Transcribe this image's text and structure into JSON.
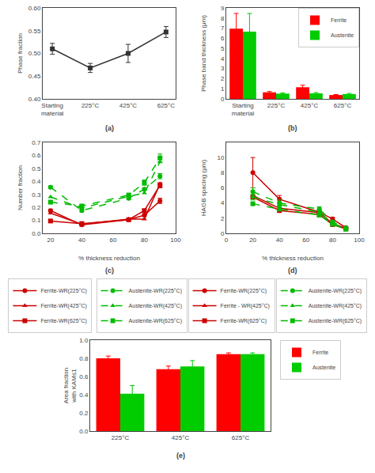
{
  "chart_data": [
    {
      "type": "line",
      "categories": [
        "Starting\nmaterial",
        "225°C",
        "425°C",
        "625°C"
      ],
      "values": [
        0.51,
        0.468,
        0.5,
        0.547
      ],
      "errors": [
        0.012,
        0.01,
        0.02,
        0.012
      ],
      "color": "#333333",
      "marker": "square",
      "ylim": [
        0.4,
        0.6
      ],
      "yticks": [
        {
          "value": 0.4,
          "label": "0.40"
        },
        {
          "value": 0.45,
          "label": "0.45"
        },
        {
          "value": 0.5,
          "label": "0.50"
        },
        {
          "value": 0.55,
          "label": "0.55"
        },
        {
          "value": 0.6,
          "label": "0.60"
        }
      ],
      "ylabel": "Phase fraction",
      "annotations": [
        "(a)"
      ],
      "grid": false
    },
    {
      "type": "bar",
      "categories": [
        "Starting\nmaterial",
        "225°C",
        "425°C",
        "625°C"
      ],
      "series": [
        {
          "name": "Ferrite",
          "color": "#ff0000",
          "values": [
            6.95,
            0.65,
            1.15,
            0.38
          ],
          "errors": [
            1.5,
            0.08,
            0.2,
            0.05
          ]
        },
        {
          "name": "Austenite",
          "color": "#00cc00",
          "values": [
            6.65,
            0.52,
            0.55,
            0.48
          ],
          "errors": [
            1.8,
            0.07,
            0.08,
            0.06
          ]
        }
      ],
      "ylim": [
        0,
        9
      ],
      "yticks": [
        0,
        1,
        2,
        3,
        4,
        5,
        6,
        7,
        8,
        9
      ],
      "ylabel": "Phase band thickness (μm)",
      "annotations": [
        "(b)"
      ],
      "legend": "upper right",
      "grid": false
    },
    {
      "type": "line",
      "x": [
        20,
        40,
        70,
        80,
        90
      ],
      "series": [
        {
          "name": "Ferrite-WR(225°C)",
          "color": "#cc0000",
          "marker": "circle",
          "line_style": "solid",
          "values": [
            0.175,
            0.065,
            0.105,
            0.14,
            0.25
          ],
          "errors": [
            0.01,
            0.01,
            0.01,
            0.01,
            0.02
          ]
        },
        {
          "name": "Ferrite-WR(425°C)",
          "color": "#cc0000",
          "marker": "triangle",
          "line_style": "solid",
          "values": [
            0.155,
            0.07,
            0.11,
            0.11,
            0.38
          ]
        },
        {
          "name": "Ferrite-WR(625°C)",
          "color": "#cc0000",
          "marker": "square",
          "line_style": "solid",
          "values": [
            0.095,
            0.075,
            0.105,
            0.175,
            0.37
          ],
          "errors": [
            0.01,
            0.01,
            0.01,
            0.01,
            0.02
          ]
        },
        {
          "name": "Austenite-WR(225°C)",
          "color": "#00bb00",
          "marker": "circle",
          "line_style": "dashed",
          "values": [
            0.355,
            0.175,
            0.27,
            0.34,
            0.44
          ],
          "errors": [
            0.01,
            0.01,
            0.01,
            0.01,
            0.02
          ]
        },
        {
          "name": "Austenite-WR(425°C)",
          "color": "#00bb00",
          "marker": "triangle",
          "line_style": "dashed",
          "values": [
            0.28,
            0.195,
            0.285,
            0.31,
            0.55
          ]
        },
        {
          "name": "Austenite-WR(625°C)",
          "color": "#00bb00",
          "marker": "square",
          "line_style": "dashed",
          "values": [
            0.24,
            0.21,
            0.295,
            0.39,
            0.58
          ],
          "errors": [
            0.01,
            0.01,
            0.01,
            0.02,
            0.03
          ]
        }
      ],
      "xlim": [
        15,
        100
      ],
      "xticks": [
        20,
        40,
        60,
        80,
        100
      ],
      "ylim": [
        0,
        0.7
      ],
      "yticks": [
        {
          "value": 0.0,
          "label": "0.0"
        },
        0.1,
        0.2,
        0.3,
        0.4,
        0.5,
        0.6,
        0.7
      ],
      "xlabel": "% thickness reduction",
      "ylabel": "Number fraction",
      "annotations": [
        "(c)"
      ],
      "legend": "bottom",
      "grid": false
    },
    {
      "type": "line",
      "x": [
        20,
        40,
        70,
        80,
        90
      ],
      "series": [
        {
          "name": "Ferrite-WR(225°C)",
          "color": "#cc0000",
          "marker": "circle",
          "line_style": "solid",
          "values": [
            8.0,
            4.5,
            2.8,
            1.9,
            0.75
          ],
          "errors": [
            2.0,
            0.5,
            0.3,
            0.2,
            0.08
          ]
        },
        {
          "name": "Ferrite - WR(425°C)",
          "color": "#cc0000",
          "marker": "triangle",
          "line_style": "solid",
          "values": [
            5.0,
            3.3,
            2.75,
            1.3,
            0.65
          ]
        },
        {
          "name": "Ferrite-WR(625°C)",
          "color": "#cc0000",
          "marker": "square",
          "line_style": "solid",
          "values": [
            4.8,
            3.0,
            2.5,
            1.15,
            0.6
          ]
        },
        {
          "name": "Austenite-WR(225°C)",
          "color": "#00bb00",
          "marker": "circle",
          "line_style": "dashed",
          "values": [
            5.5,
            4.0,
            3.2,
            1.5,
            0.7
          ],
          "errors": [
            0.5,
            0.4,
            0.3,
            0.15,
            0.06
          ]
        },
        {
          "name": "Austenite-WR(425°C)",
          "color": "#00bb00",
          "marker": "triangle",
          "line_style": "dashed",
          "values": [
            4.8,
            3.8,
            2.8,
            1.35,
            0.6
          ],
          "errors": [
            0.4,
            0.35,
            0.25,
            0.12,
            0.05
          ]
        },
        {
          "name": "Austenite-WR(625°C)",
          "color": "#00bb00",
          "marker": "square",
          "line_style": "dashed",
          "values": [
            3.9,
            3.2,
            2.4,
            1.2,
            0.55
          ]
        }
      ],
      "xlim": [
        0,
        100
      ],
      "xticks": [
        0,
        20,
        40,
        60,
        80,
        100
      ],
      "ylim": [
        0,
        12
      ],
      "yticks": [
        0,
        2,
        4,
        6,
        8,
        10
      ],
      "xlabel": "% thickness reduction",
      "ylabel": "HAGB spacing (μm)",
      "annotations": [
        "(d)"
      ],
      "legend": "bottom",
      "grid": false
    },
    {
      "type": "bar",
      "categories": [
        "225°C",
        "425°C",
        "625°C"
      ],
      "series": [
        {
          "name": "Ferrite",
          "color": "#ff0000",
          "values": [
            0.8,
            0.68,
            0.845
          ],
          "errors": [
            0.025,
            0.035,
            0.015
          ]
        },
        {
          "name": "Austenite",
          "color": "#00cc00",
          "values": [
            0.41,
            0.71,
            0.845
          ],
          "errors": [
            0.09,
            0.065,
            0.015
          ]
        }
      ],
      "ylim": [
        0,
        1.0
      ],
      "yticks": [
        {
          "value": 0.0,
          "label": "0.0"
        },
        0.2,
        0.4,
        0.6,
        0.8,
        {
          "value": 1.0,
          "label": "1.0"
        }
      ],
      "ylabel": "Area fraction\nwith KAM≤1",
      "annotations": [
        "(e)"
      ],
      "legend": "right",
      "grid": false
    }
  ]
}
